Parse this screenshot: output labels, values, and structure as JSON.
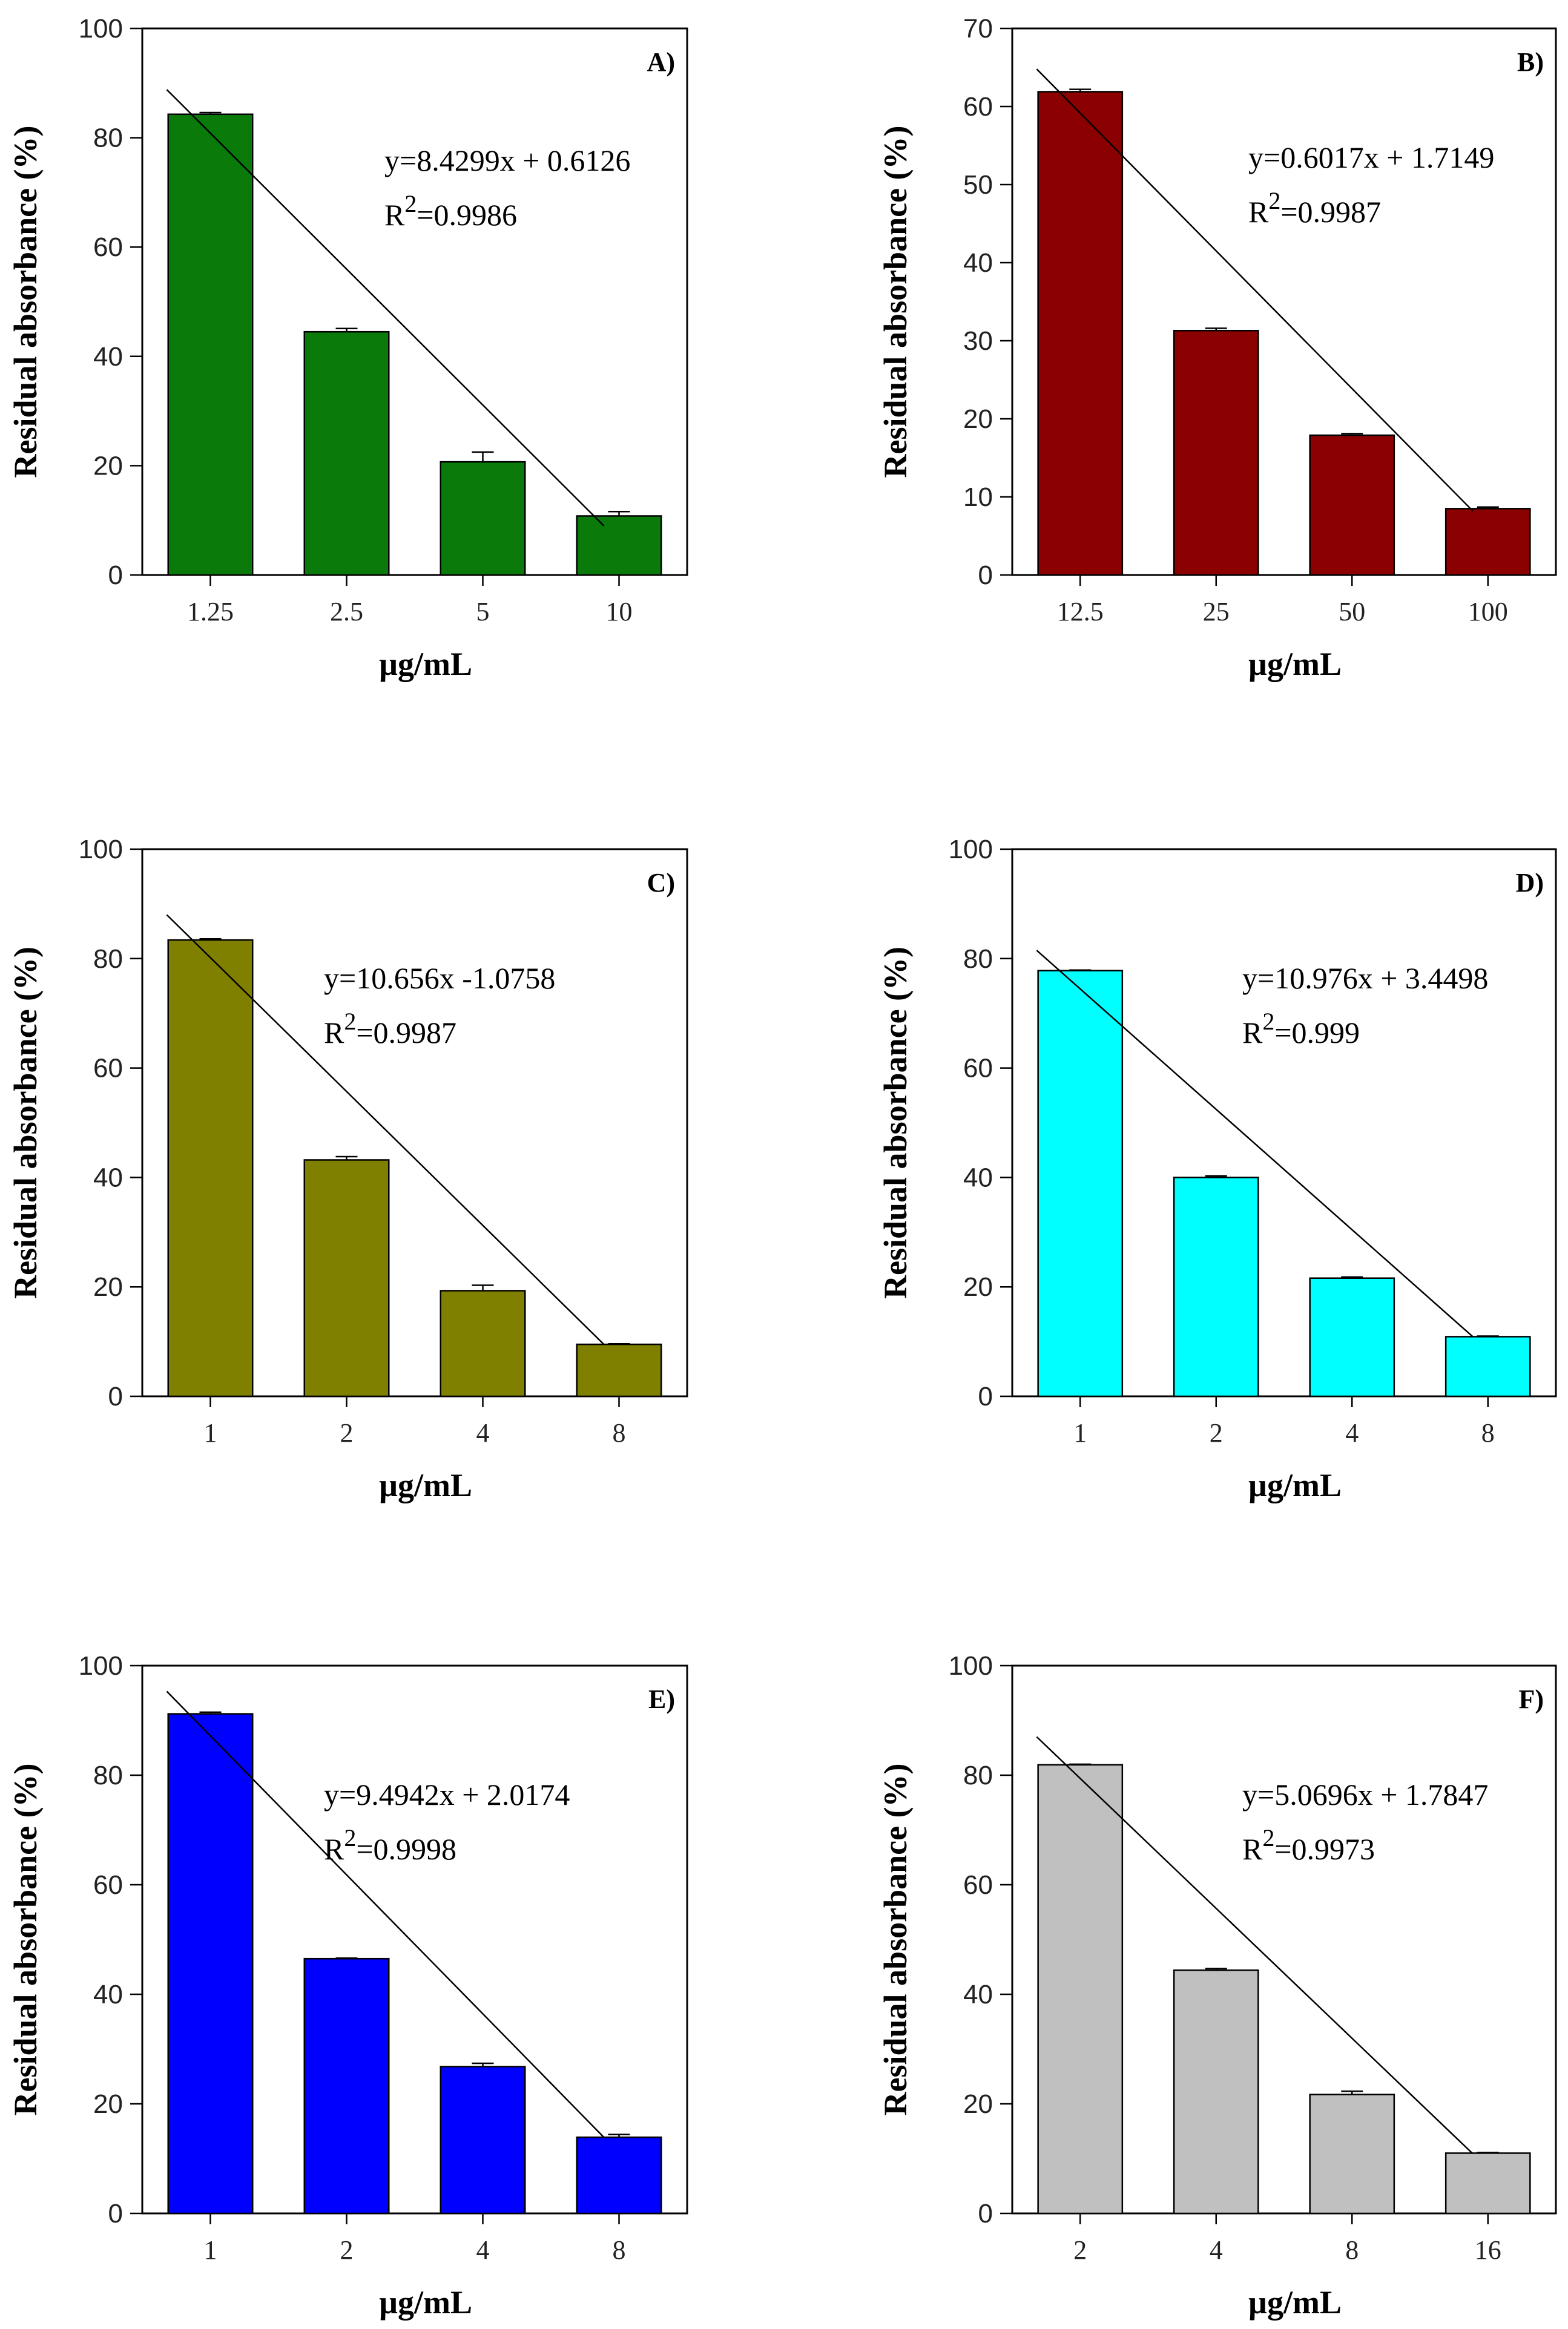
{
  "chart_data": [
    {
      "type": "bar",
      "panel_label": "A)",
      "color": "#0a7a0a",
      "categories": [
        "1.25",
        "2.5",
        "5",
        "10"
      ],
      "values": [
        84.3,
        44.5,
        20.7,
        10.8
      ],
      "errors": [
        0.3,
        0.6,
        1.8,
        0.8
      ],
      "ylim": [
        0,
        100
      ],
      "yticks": [
        0,
        20,
        40,
        60,
        80,
        100
      ],
      "xlabel": "µg/mL",
      "ylabel": "Residual absorbance (%)",
      "equation": "y=8.4299x + 0.6126",
      "r2_prefix": "R",
      "r2_sup": "2",
      "r2_value": "=0.9986",
      "fit_line": {
        "y_start": 88.8,
        "y_end": 9.0
      }
    },
    {
      "type": "bar",
      "panel_label": "B)",
      "color": "#8b0000",
      "categories": [
        "12.5",
        "25",
        "50",
        "100"
      ],
      "values": [
        61.9,
        31.3,
        17.9,
        8.5
      ],
      "errors": [
        0.3,
        0.3,
        0.2,
        0.2
      ],
      "ylim": [
        0,
        70
      ],
      "yticks": [
        0,
        10,
        20,
        30,
        40,
        50,
        60,
        70
      ],
      "xlabel": "µg/mL",
      "ylabel": "Residual absorbance (%)",
      "equation": "y=0.6017x + 1.7149",
      "r2_prefix": "R",
      "r2_sup": "2",
      "r2_value": "=0.9987",
      "fit_line": {
        "y_start": 64.8,
        "y_end": 8.2
      }
    },
    {
      "type": "bar",
      "panel_label": "C)",
      "color": "#808000",
      "categories": [
        "1",
        "2",
        "4",
        "8"
      ],
      "values": [
        83.4,
        43.2,
        19.3,
        9.5
      ],
      "errors": [
        0.2,
        0.6,
        1.0,
        0.1
      ],
      "ylim": [
        0,
        100
      ],
      "yticks": [
        0,
        20,
        40,
        60,
        80,
        100
      ],
      "xlabel": "µg/mL",
      "ylabel": "Residual absorbance (%)",
      "equation": "y=10.656x -1.0758",
      "r2_prefix": "R",
      "r2_sup": "2",
      "r2_value": "=0.9987",
      "fit_line": {
        "y_start": 88.0,
        "y_end": 9.5
      }
    },
    {
      "type": "bar",
      "panel_label": "D)",
      "color": "#00ffff",
      "categories": [
        "1",
        "2",
        "4",
        "8"
      ],
      "values": [
        77.8,
        40.0,
        21.6,
        10.9
      ],
      "errors": [
        0.1,
        0.3,
        0.2,
        0.1
      ],
      "ylim": [
        0,
        100
      ],
      "yticks": [
        0,
        20,
        40,
        60,
        80,
        100
      ],
      "xlabel": "µg/mL",
      "ylabel": "Residual absorbance (%)",
      "equation": "y=10.976x + 3.4498",
      "r2_prefix": "R",
      "r2_sup": "2",
      "r2_value": "=0.999",
      "fit_line": {
        "y_start": 81.5,
        "y_end": 10.9
      }
    },
    {
      "type": "bar",
      "panel_label": "E)",
      "color": "#0000ff",
      "categories": [
        "1",
        "2",
        "4",
        "8"
      ],
      "values": [
        91.2,
        46.5,
        26.8,
        13.9
      ],
      "errors": [
        0.3,
        0.1,
        0.6,
        0.5
      ],
      "ylim": [
        0,
        100
      ],
      "yticks": [
        0,
        20,
        40,
        60,
        80,
        100
      ],
      "xlabel": "µg/mL",
      "ylabel": "Residual absorbance (%)",
      "equation": "y=9.4942x + 2.0174",
      "r2_prefix": "R",
      "r2_sup": "2",
      "r2_value": "=0.9998",
      "fit_line": {
        "y_start": 95.3,
        "y_end": 13.9
      }
    },
    {
      "type": "bar",
      "panel_label": "F)",
      "color": "#c0c0c0",
      "categories": [
        "2",
        "4",
        "8",
        "16"
      ],
      "values": [
        81.9,
        44.4,
        21.7,
        11.0
      ],
      "errors": [
        0.1,
        0.3,
        0.6,
        0.1
      ],
      "ylim": [
        0,
        100
      ],
      "yticks": [
        0,
        20,
        40,
        60,
        80,
        100
      ],
      "xlabel": "µg/mL",
      "ylabel": "Residual absorbance (%)",
      "equation": "y=5.0696x + 1.7847",
      "r2_prefix": "R",
      "r2_sup": "2",
      "r2_value": "=0.9973",
      "fit_line": {
        "y_start": 87.0,
        "y_end": 10.9
      }
    }
  ]
}
